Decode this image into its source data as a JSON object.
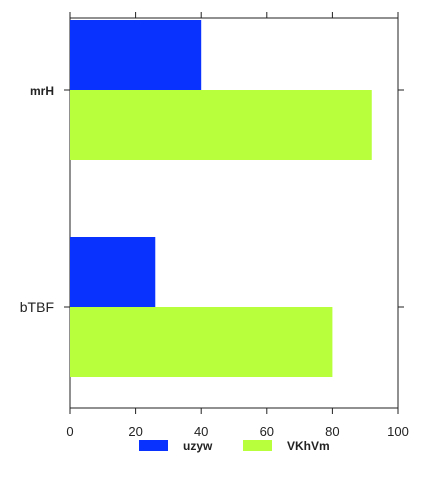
{
  "chart_data": {
    "type": "bar",
    "orientation": "horizontal",
    "categories": [
      "mrH",
      "bTBF"
    ],
    "series": [
      {
        "name": "uzyw",
        "color": "#0a32ff",
        "values": [
          40,
          26
        ]
      },
      {
        "name": "VKhVm",
        "color": "#b8ff3c",
        "values": [
          92,
          80
        ]
      }
    ],
    "xlim": [
      0,
      100
    ],
    "xticks": [
      0,
      20,
      40,
      60,
      80,
      100
    ],
    "xlabel": "",
    "ylabel": "",
    "title": "",
    "grid": false,
    "legend_position": "bottom"
  }
}
